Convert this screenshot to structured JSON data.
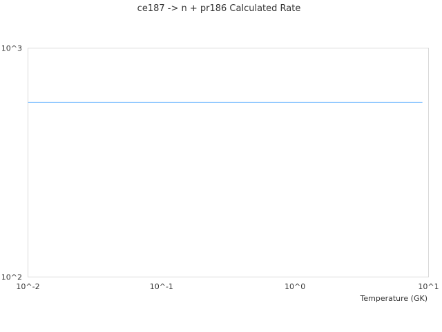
{
  "chart_data": {
    "type": "line",
    "title": "ce187 -> n + pr186 Calculated Rate",
    "xlabel": "Temperature (GK)",
    "ylabel": "",
    "x_scale": "log",
    "y_scale": "log",
    "xlim": [
      0.01,
      10
    ],
    "ylim": [
      100,
      1000
    ],
    "x_ticks": [
      "10^-2",
      "10^-1",
      "10^0",
      "10^1"
    ],
    "y_ticks": [
      "10^2",
      "10^3"
    ],
    "grid": false,
    "series": [
      {
        "color": "#4da6ff",
        "x": [
          0.01,
          0.1,
          1,
          9
        ],
        "y": [
          578,
          578,
          578,
          578
        ]
      }
    ]
  }
}
